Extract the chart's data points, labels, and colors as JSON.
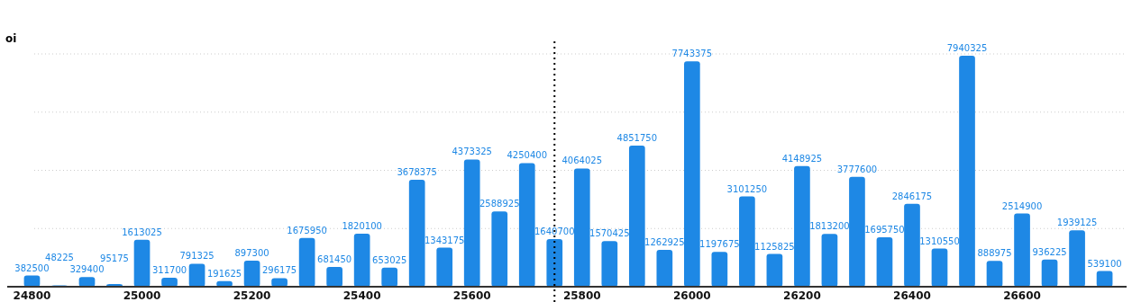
{
  "chart_data": {
    "type": "bar",
    "ylabel": "oi",
    "x": [
      24800,
      24850,
      24900,
      24950,
      25000,
      25050,
      25100,
      25150,
      25200,
      25250,
      25300,
      25350,
      25400,
      25450,
      25500,
      25550,
      25600,
      25650,
      25700,
      25750,
      25800,
      25850,
      25900,
      25950,
      26000,
      26050,
      26100,
      26150,
      26200,
      26250,
      26300,
      26350,
      26400,
      26450,
      26500,
      26550,
      26600,
      26650,
      26700,
      26750
    ],
    "values": [
      382500,
      48225,
      329400,
      95175,
      1613025,
      311700,
      791325,
      191625,
      897300,
      296175,
      1675950,
      681450,
      1820100,
      653025,
      3678375,
      1343175,
      4373325,
      2588925,
      4250400,
      1640700,
      4064025,
      1570425,
      4851750,
      1262925,
      7743375,
      1197675,
      3101250,
      1125825,
      4148925,
      1813200,
      3777600,
      1695750,
      2846175,
      1310550,
      7940325,
      888975,
      2514900,
      936225,
      1939125,
      539100
    ],
    "color": "#1e88e5",
    "data_labels": true,
    "xlim": [
      24755,
      26790
    ],
    "xticks": [
      24800,
      25000,
      25200,
      25400,
      25600,
      25800,
      26000,
      26200,
      26400,
      26600
    ],
    "ylim": [
      0,
      8000000
    ],
    "yticks": [
      {
        "value": 0,
        "label": null
      },
      {
        "value": 2000000,
        "label": null
      },
      {
        "value": 4000000,
        "label": null
      },
      {
        "value": 6000000,
        "label": null
      },
      {
        "value": 8000000,
        "label": null
      }
    ],
    "tick_labels": "x",
    "grid": "y",
    "ref_lines": [
      {
        "axis": "x",
        "value": 25750,
        "color": "#000000",
        "line_style": "dotted"
      }
    ]
  }
}
